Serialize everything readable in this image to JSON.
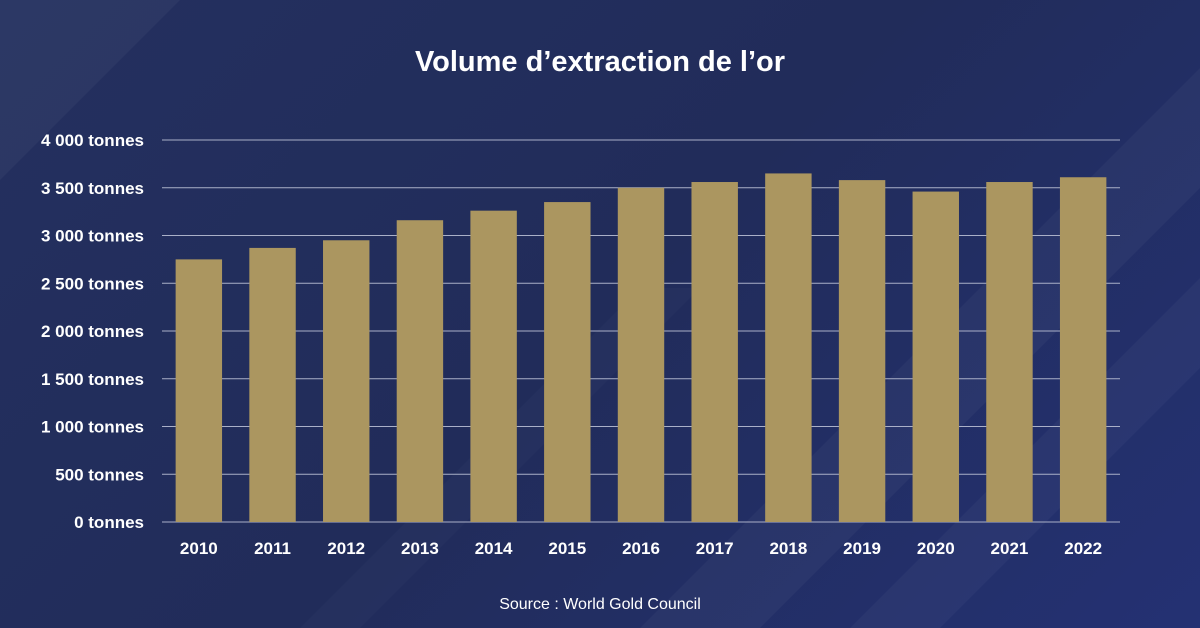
{
  "chart_data": {
    "type": "bar",
    "title": "Volume d’extraction de l’or",
    "categories": [
      "2010",
      "2011",
      "2012",
      "2013",
      "2014",
      "2015",
      "2016",
      "2017",
      "2018",
      "2019",
      "2020",
      "2021",
      "2022"
    ],
    "values": [
      2750,
      2870,
      2950,
      3160,
      3260,
      3350,
      3500,
      3560,
      3650,
      3580,
      3460,
      3560,
      3610
    ],
    "ylim": [
      0,
      4000
    ],
    "ytick_labels": [
      "0 tonnes",
      "500 tonnes",
      "1 000 tonnes",
      "1 500 tonnes",
      "2 000 tonnes",
      "2 500 tonnes",
      "3 000 tonnes",
      "3 500 tonnes",
      "4 000 tonnes"
    ],
    "xlabel": "",
    "ylabel": "",
    "grid": true,
    "bar_color": "#ab9660",
    "source": "Source : World Gold Council"
  },
  "colors": {
    "background": "#222d5c",
    "gridline": "#aab0c8",
    "text": "#ffffff"
  }
}
